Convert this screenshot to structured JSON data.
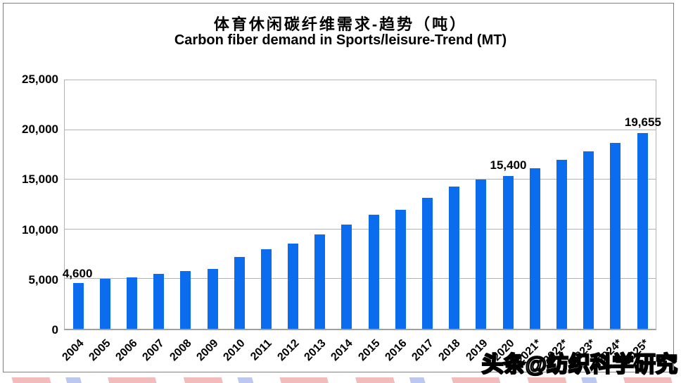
{
  "title": {
    "zh": "体育休闲碳纤维需求-趋势（吨）",
    "en": "Carbon fiber demand in Sports/leisure-Trend (MT)"
  },
  "watermark": "头条@纺织科学研究",
  "colors": {
    "bar": "#0b6cee",
    "gridline": "#b3b3b3",
    "axis_line": "#a0a0a0",
    "frame_border": "#7f7f7f",
    "strip_red": "#f3bcbc",
    "strip_blue": "#bdc8f0"
  },
  "chart_data": {
    "type": "bar",
    "title": "体育休闲碳纤维需求-趋势（吨）",
    "subtitle": "Carbon fiber demand in Sports/leisure-Trend (MT)",
    "categories": [
      "2004",
      "2005",
      "2006",
      "2007",
      "2008",
      "2009",
      "2010",
      "2011",
      "2012",
      "2013",
      "2014",
      "2015",
      "2016",
      "2017",
      "2018",
      "2019",
      "2020",
      "2021*",
      "2022*",
      "2023*",
      "2024*",
      "2025*"
    ],
    "values": [
      4600,
      5000,
      5200,
      5500,
      5800,
      6000,
      7200,
      8000,
      8600,
      9500,
      10500,
      11500,
      12000,
      13200,
      14300,
      15000,
      15400,
      16170,
      16979,
      17828,
      18719,
      19655
    ],
    "ylim": [
      0,
      25000
    ],
    "ytick_interval": 5000,
    "ytick_labels": [
      "0",
      "5,000",
      "10,000",
      "15,000",
      "20,000",
      "25,000"
    ],
    "data_labels": [
      {
        "index": 0,
        "category": "2004",
        "text": "4,600"
      },
      {
        "index": 16,
        "category": "2020",
        "text": "15,400"
      },
      {
        "index": 21,
        "category": "2025*",
        "text": "19,655"
      }
    ],
    "bar_color": "#0b6cee",
    "grid": true,
    "legend_position": "none",
    "xlabel": "",
    "ylabel": ""
  }
}
